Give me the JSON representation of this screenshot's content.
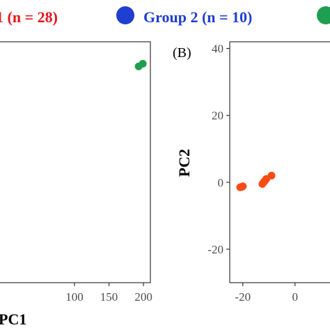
{
  "legend": {
    "items": [
      {
        "label": "1 (n = 28)",
        "color": "#e8141c"
      },
      {
        "label": "Group 2 (n = 10)",
        "color": "#1f3fd1"
      },
      {
        "label": "",
        "color": "#1e9e50"
      }
    ]
  },
  "chart_data": [
    {
      "panel": "",
      "type": "scatter",
      "xlabel": "PC1",
      "ylabel": "",
      "xlim": [
        -10,
        210
      ],
      "ylim": [
        -40,
        48
      ],
      "xticks": [
        100,
        150,
        200
      ],
      "yticks": [],
      "series": [
        {
          "color": "#1e9e50",
          "x": [
            193,
            199
          ],
          "y": [
            39,
            40
          ]
        }
      ]
    },
    {
      "panel": "(B)",
      "type": "scatter",
      "xlabel": "",
      "ylabel": "PC2",
      "xlim": [
        -25,
        15
      ],
      "ylim": [
        -30,
        42
      ],
      "xticks": [
        -20,
        0
      ],
      "yticks": [
        -20,
        0,
        20,
        40
      ],
      "series": [
        {
          "color": "#fb4a16",
          "x": [
            -21,
            -20.5,
            -20,
            -12.5,
            -12,
            -11.5,
            -11,
            -9
          ],
          "y": [
            -1.5,
            -1.4,
            -1.2,
            -0.5,
            0,
            0.5,
            1,
            2
          ]
        }
      ]
    }
  ]
}
